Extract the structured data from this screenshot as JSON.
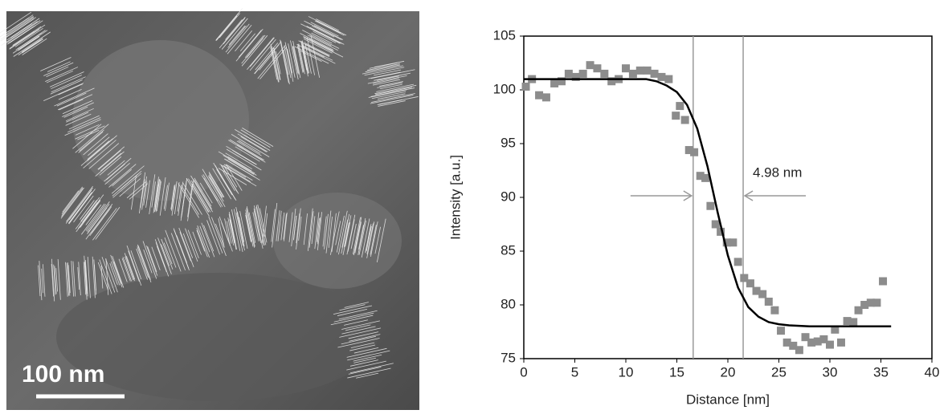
{
  "image": {
    "scale_label": "100 nm"
  },
  "chart_data": {
    "type": "scatter",
    "xlabel": "Distance [nm]",
    "ylabel": "Intensity [a.u.]",
    "xlim": [
      0,
      40
    ],
    "xticks": [
      0,
      5,
      10,
      15,
      20,
      25,
      30,
      35,
      40
    ],
    "ylim": [
      75,
      105
    ],
    "yticks": [
      75,
      80,
      85,
      90,
      95,
      100,
      105
    ],
    "grid": false,
    "series": [
      {
        "color": "#8c8c8c",
        "marker": "square",
        "x": [
          0.2,
          0.8,
          1.5,
          2.2,
          3,
          3.7,
          4.4,
          5.1,
          5.8,
          6.5,
          7.2,
          7.9,
          8.6,
          9.3,
          10,
          10.7,
          11.4,
          12.1,
          12.8,
          13.5,
          14.2,
          14.9,
          15.3,
          15.8,
          16.2,
          16.7,
          17.3,
          17.8,
          18.3,
          18.8,
          19.3,
          19.9,
          20.5,
          21,
          21.6,
          22.2,
          22.8,
          23.4,
          24,
          24.6,
          25.2,
          25.8,
          26.4,
          27,
          27.6,
          28.2,
          28.8,
          29.4,
          30,
          30.5,
          31.1,
          31.7,
          32.3,
          32.8,
          33.4,
          34,
          34.6,
          35.2
        ],
        "values": [
          100.3,
          101,
          99.5,
          99.3,
          100.6,
          100.8,
          101.5,
          101.2,
          101.5,
          102.3,
          102,
          101.5,
          100.8,
          101,
          102,
          101.5,
          101.8,
          101.8,
          101.5,
          101.2,
          101,
          97.6,
          98.5,
          97.2,
          94.4,
          94.2,
          92,
          91.8,
          89.2,
          87.5,
          86.8,
          85.8,
          85.8,
          84,
          82.5,
          82,
          81.3,
          81,
          80.3,
          79.5,
          77.6,
          76.5,
          76.2,
          75.8,
          77,
          76.5,
          76.6,
          76.8,
          76.3,
          77.7,
          76.5,
          78.5,
          78.4,
          79.5,
          80,
          80.2,
          80.2,
          82.2
        ]
      },
      {
        "color": "#000000",
        "marker": "line",
        "x": [
          0,
          2,
          4,
          6,
          8,
          10,
          12,
          13,
          14,
          15,
          16,
          17,
          18,
          19,
          20,
          21,
          22,
          23,
          24,
          25,
          26,
          28,
          30,
          32,
          34,
          36
        ],
        "values": [
          101,
          101,
          101,
          101,
          101,
          101,
          101,
          100.8,
          100.4,
          99.8,
          98.6,
          96.4,
          92.9,
          88.6,
          84.6,
          81.6,
          79.8,
          78.9,
          78.4,
          78.2,
          78.1,
          78,
          78,
          78,
          78,
          78
        ]
      }
    ],
    "vlines": [
      16.6,
      21.5
    ],
    "annotation": "4.98 nm"
  }
}
